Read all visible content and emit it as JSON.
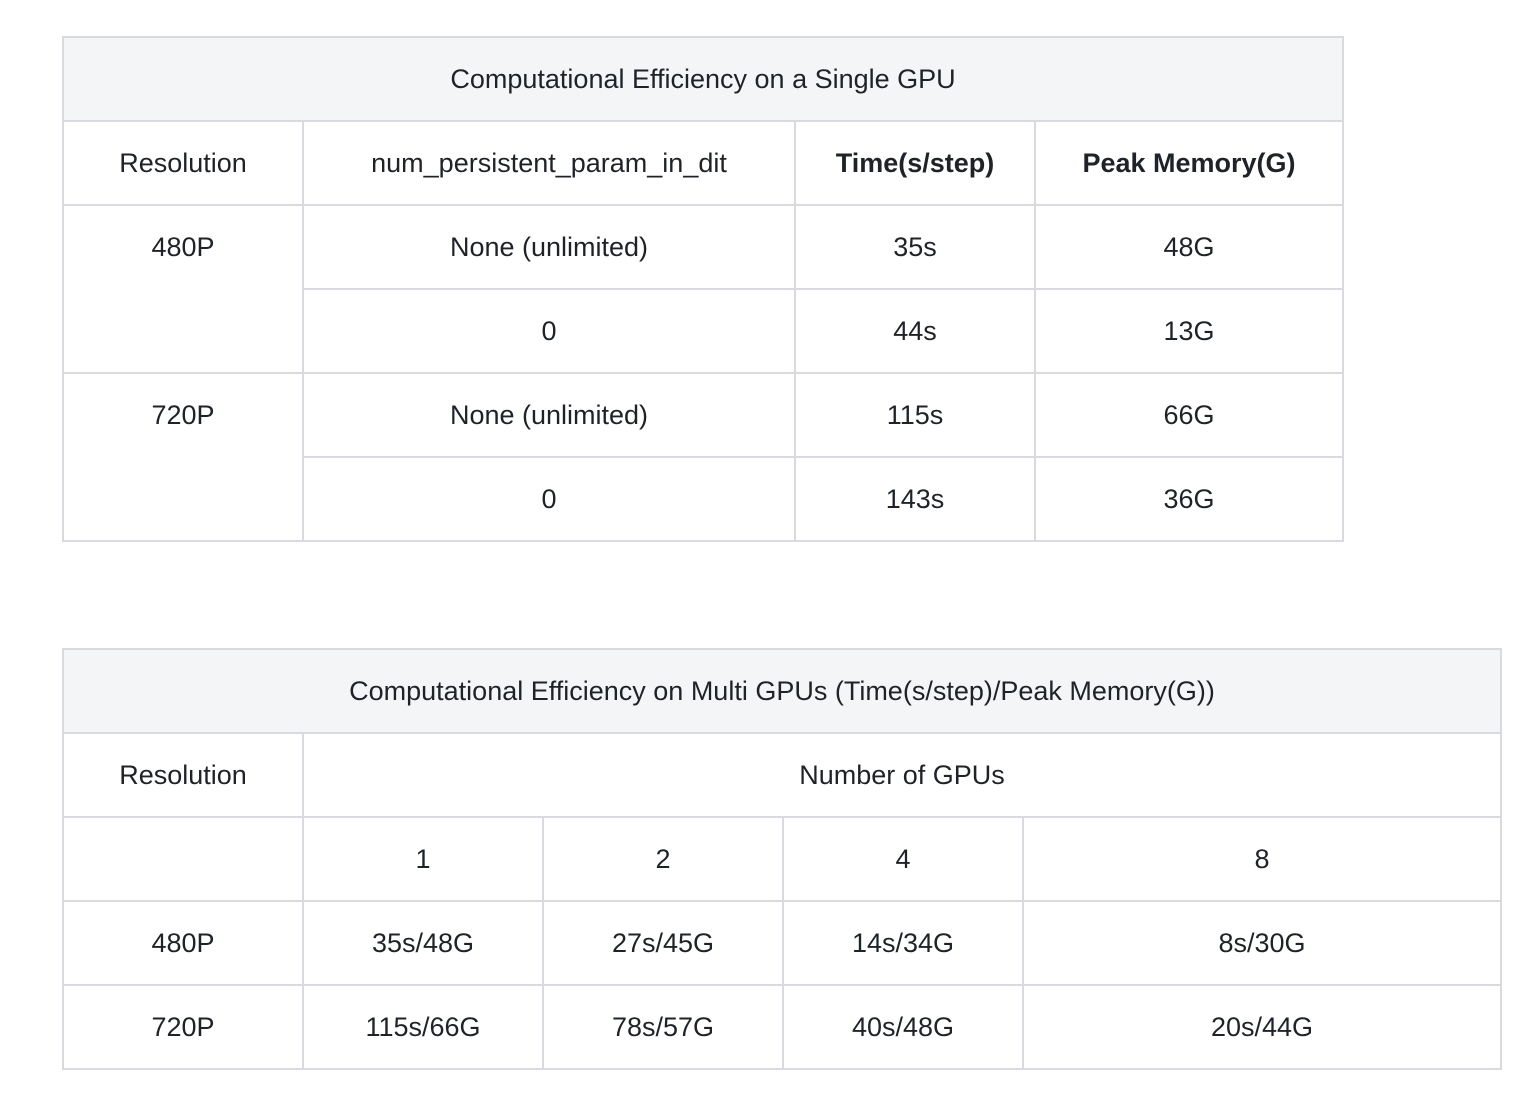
{
  "single_gpu": {
    "title": "Computational Efficiency on a Single GPU",
    "headers": [
      "Resolution",
      "num_persistent_param_in_dit",
      "Time(s/step)",
      "Peak Memory(G)"
    ],
    "groups": [
      {
        "resolution": "480P",
        "rows": [
          {
            "param": "None (unlimited)",
            "time": "35s",
            "memory": "48G"
          },
          {
            "param": "0",
            "time": "44s",
            "memory": "13G"
          }
        ]
      },
      {
        "resolution": "720P",
        "rows": [
          {
            "param": "None (unlimited)",
            "time": "115s",
            "memory": "66G"
          },
          {
            "param": "0",
            "time": "143s",
            "memory": "36G"
          }
        ]
      }
    ]
  },
  "multi_gpu": {
    "title": "Computational Efficiency on Multi GPUs (Time(s/step)/Peak Memory(G))",
    "resolution_header": "Resolution",
    "gpus_header": "Number of GPUs",
    "gpu_counts": [
      "1",
      "2",
      "4",
      "8"
    ],
    "rows": [
      {
        "resolution": "480P",
        "values": [
          "35s/48G",
          "27s/45G",
          "14s/34G",
          "8s/30G"
        ]
      },
      {
        "resolution": "720P",
        "values": [
          "115s/66G",
          "78s/57G",
          "40s/48G",
          "20s/44G"
        ]
      }
    ]
  }
}
